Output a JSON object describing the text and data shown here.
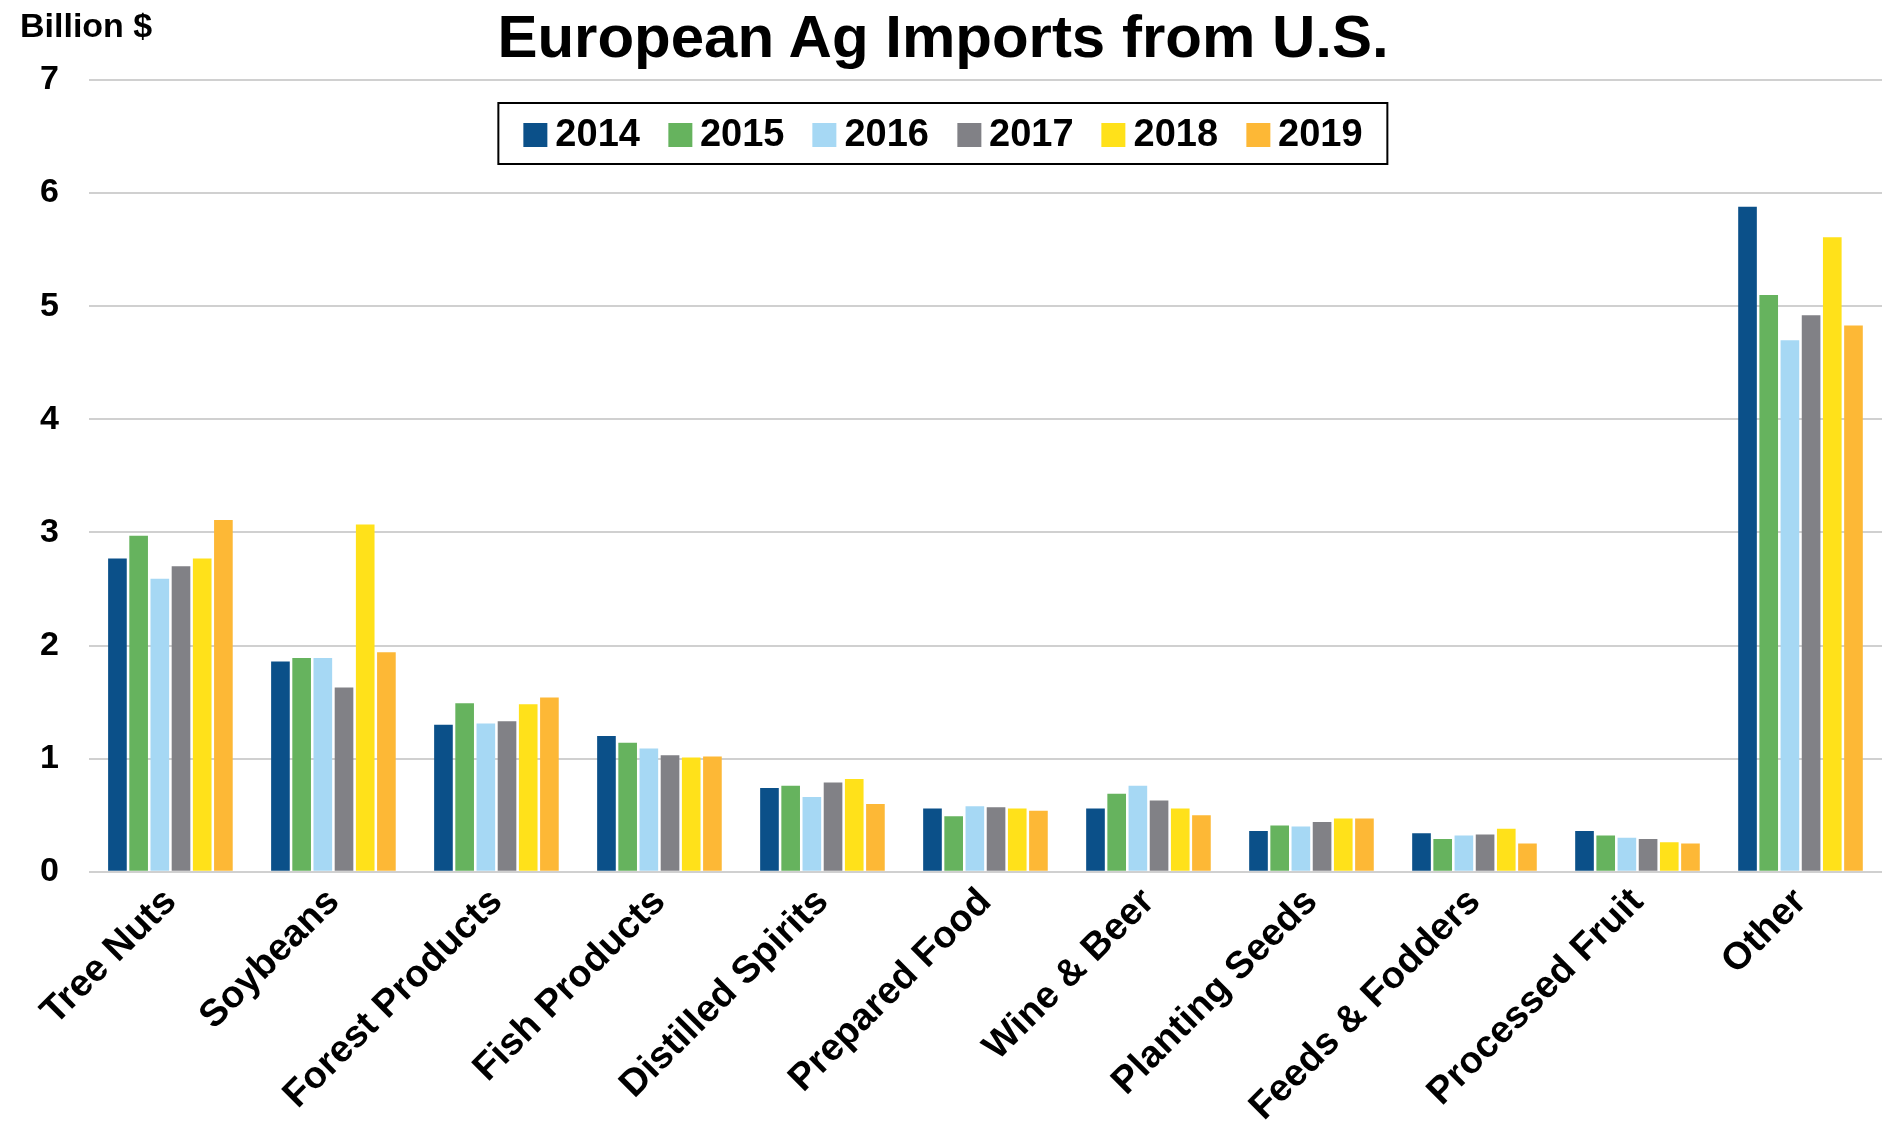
{
  "chart_data": {
    "type": "bar",
    "title": "European Ag Imports from U.S.",
    "ylabel": "Billion $",
    "categories": [
      "Tree Nuts",
      "Soybeans",
      "Forest Products",
      "Fish Products",
      "Distilled Spirits",
      "Prepared Food",
      "Wine & Beer",
      "Planting Seeds",
      "Feeds & Fodders",
      "Processed Fruit",
      "Other"
    ],
    "series": [
      {
        "name": "2014",
        "color": "#0b5089",
        "values": [
          2.77,
          1.86,
          1.3,
          1.2,
          0.74,
          0.56,
          0.56,
          0.36,
          0.34,
          0.36,
          5.88
        ]
      },
      {
        "name": "2015",
        "color": "#66b35e",
        "values": [
          2.97,
          1.89,
          1.49,
          1.14,
          0.76,
          0.49,
          0.69,
          0.41,
          0.29,
          0.32,
          5.1
        ]
      },
      {
        "name": "2016",
        "color": "#a6d8f4",
        "values": [
          2.59,
          1.89,
          1.31,
          1.09,
          0.66,
          0.58,
          0.76,
          0.4,
          0.32,
          0.3,
          4.7
        ]
      },
      {
        "name": "2017",
        "color": "#818186",
        "values": [
          2.7,
          1.63,
          1.33,
          1.03,
          0.79,
          0.57,
          0.63,
          0.44,
          0.33,
          0.29,
          4.92
        ]
      },
      {
        "name": "2018",
        "color": "#ffe11a",
        "values": [
          2.77,
          3.07,
          1.48,
          1.01,
          0.82,
          0.56,
          0.56,
          0.47,
          0.38,
          0.26,
          5.61
        ]
      },
      {
        "name": "2019",
        "color": "#fdb836",
        "values": [
          3.11,
          1.94,
          1.54,
          1.02,
          0.6,
          0.54,
          0.5,
          0.47,
          0.25,
          0.25,
          4.83
        ]
      }
    ],
    "ylim": [
      0,
      7
    ],
    "yticks": [
      0,
      1,
      2,
      3,
      4,
      5,
      6,
      7
    ],
    "grid": "y",
    "legend": "top"
  }
}
